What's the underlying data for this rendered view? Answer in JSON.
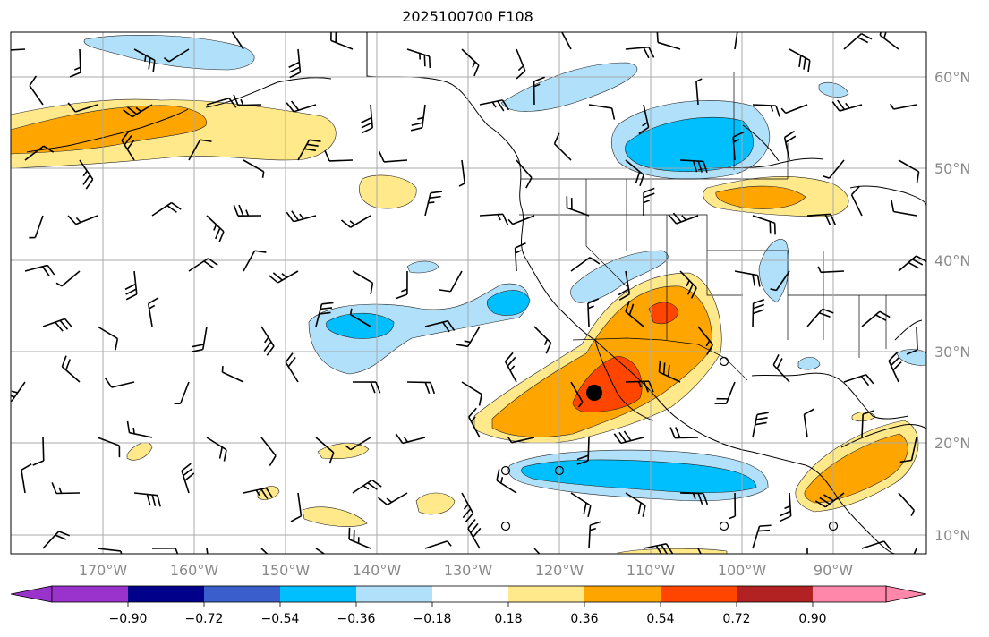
{
  "title": "2025100700 F108",
  "map": {
    "lon_labels": [
      "170°W",
      "160°W",
      "150°W",
      "140°W",
      "130°W",
      "120°W",
      "110°W",
      "100°W",
      "90°W"
    ],
    "lat_labels": [
      "60°N",
      "50°N",
      "40°N",
      "30°N",
      "20°N",
      "10°N"
    ],
    "marker": "storm-center-dot"
  },
  "colorbar": {
    "tick_labels": [
      "−0.90",
      "−0.72",
      "−0.54",
      "−0.36",
      "−0.18",
      "0.18",
      "0.36",
      "0.54",
      "0.72",
      "0.90"
    ],
    "colors": [
      "#9933cc",
      "#00008b",
      "#3a5fcd",
      "#00bfff",
      "#b0e0fa",
      "#ffffff",
      "#ffe98a",
      "#ffa500",
      "#ff4500",
      "#b22222",
      "#ff88aa"
    ]
  },
  "palette": {
    "neg_light": "#b0e0fa",
    "neg_mid": "#00bfff",
    "pos_light": "#ffe98a",
    "pos_mid": "#ffa500",
    "pos_strong": "#ff4500",
    "grid": "#aaaaaa"
  }
}
